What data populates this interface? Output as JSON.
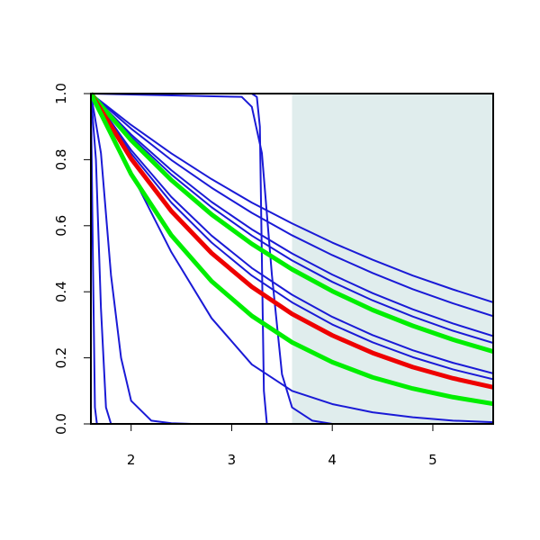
{
  "chart_data": {
    "type": "line",
    "xlim": [
      1.6,
      5.6
    ],
    "ylim": [
      0,
      1
    ],
    "xticks": [
      2,
      3,
      4,
      5
    ],
    "yticks": [
      {
        "value": 0,
        "label": "0.0"
      },
      {
        "value": 0.2,
        "label": "0.2"
      },
      {
        "value": 0.4,
        "label": "0.4"
      },
      {
        "value": 0.6,
        "label": "0.6"
      },
      {
        "value": 0.8,
        "label": "0.8"
      },
      {
        "value": 1,
        "label": "1.0"
      }
    ],
    "shade": {
      "xlim": [
        3.6,
        5.6
      ],
      "color": "#e0eded"
    },
    "series": [
      {
        "color": "#1a1ad6",
        "width": 2,
        "x": [
          1.6,
          1.62,
          1.64,
          1.66,
          5.6
        ],
        "values": [
          1,
          0.5,
          0.05,
          0,
          0
        ]
      },
      {
        "color": "#1a1ad6",
        "width": 2,
        "x": [
          1.6,
          1.65,
          1.7,
          1.75,
          1.8,
          5.6
        ],
        "values": [
          1,
          0.8,
          0.35,
          0.05,
          0,
          0
        ]
      },
      {
        "color": "#1a1ad6",
        "width": 2,
        "x": [
          1.6,
          1.7,
          1.8,
          1.9,
          2.0,
          2.2,
          2.4,
          2.6,
          5.6
        ],
        "values": [
          1,
          0.82,
          0.45,
          0.2,
          0.07,
          0.01,
          0.002,
          0,
          0
        ]
      },
      {
        "color": "#1a1ad6",
        "width": 2,
        "x": [
          1.6,
          2.0,
          2.4,
          2.8,
          3.2,
          3.6,
          4.0,
          4.4,
          4.8,
          5.2,
          5.6
        ],
        "values": [
          1,
          0.76,
          0.52,
          0.32,
          0.18,
          0.1,
          0.06,
          0.035,
          0.02,
          0.01,
          0.005
        ]
      },
      {
        "color": "#1a1ad6",
        "width": 2,
        "x": [
          1.6,
          3.2,
          3.25,
          3.28,
          3.3,
          3.32,
          3.35,
          5.6
        ],
        "values": [
          1,
          1,
          0.99,
          0.9,
          0.5,
          0.1,
          0,
          0
        ]
      },
      {
        "color": "#1a1ad6",
        "width": 2,
        "x": [
          1.6,
          3.1,
          3.2,
          3.3,
          3.4,
          3.5,
          3.6,
          3.8,
          4.0,
          5.6
        ],
        "values": [
          1,
          0.99,
          0.96,
          0.82,
          0.45,
          0.15,
          0.05,
          0.01,
          0,
          0
        ]
      },
      {
        "color": "#1a1ad6",
        "width": 2,
        "x": [
          1.6,
          2.0,
          2.4,
          2.8,
          3.2,
          3.6,
          4.0,
          4.4,
          4.8,
          5.2,
          5.6
        ],
        "values": [
          1,
          0.905,
          0.819,
          0.741,
          0.67,
          0.607,
          0.549,
          0.497,
          0.449,
          0.407,
          0.368
        ]
      },
      {
        "color": "#1a1ad6",
        "width": 2,
        "x": [
          1.6,
          2.0,
          2.4,
          2.8,
          3.2,
          3.6,
          4.0,
          4.4,
          4.8,
          5.2,
          5.6
        ],
        "values": [
          1,
          0.894,
          0.799,
          0.715,
          0.639,
          0.571,
          0.511,
          0.457,
          0.408,
          0.365,
          0.326
        ]
      },
      {
        "color": "#1a1ad6",
        "width": 2,
        "x": [
          1.6,
          2.0,
          2.4,
          2.8,
          3.2,
          3.6,
          4.0,
          4.4,
          4.8,
          5.2,
          5.6
        ],
        "values": [
          1,
          0.876,
          0.768,
          0.672,
          0.589,
          0.516,
          0.452,
          0.396,
          0.347,
          0.304,
          0.266
        ]
      },
      {
        "color": "#1a1ad6",
        "width": 2,
        "x": [
          1.6,
          2.0,
          2.4,
          2.8,
          3.2,
          3.6,
          4.0,
          4.4,
          4.8,
          5.2,
          5.6
        ],
        "values": [
          1,
          0.869,
          0.755,
          0.656,
          0.57,
          0.495,
          0.43,
          0.374,
          0.325,
          0.282,
          0.245
        ]
      },
      {
        "color": "#1a1ad6",
        "width": 2,
        "x": [
          1.6,
          2.0,
          2.4,
          2.8,
          3.2,
          3.6,
          4.0,
          4.4,
          4.8,
          5.2,
          5.6
        ],
        "values": [
          1,
          0.829,
          0.687,
          0.57,
          0.472,
          0.391,
          0.324,
          0.269,
          0.223,
          0.185,
          0.153
        ]
      },
      {
        "color": "#1a1ad6",
        "width": 2,
        "x": [
          1.6,
          2.0,
          2.4,
          2.8,
          3.2,
          3.6,
          4.0,
          4.4,
          4.8,
          5.2,
          5.6
        ],
        "values": [
          1,
          0.819,
          0.67,
          0.549,
          0.449,
          0.368,
          0.301,
          0.247,
          0.202,
          0.165,
          0.135
        ]
      },
      {
        "color": "#00ee00",
        "width": 5,
        "x": [
          1.6,
          2.0,
          2.4,
          2.8,
          3.2,
          3.6,
          4.0,
          4.4,
          4.8,
          5.2,
          5.6
        ],
        "values": [
          1,
          0.859,
          0.738,
          0.634,
          0.545,
          0.468,
          0.402,
          0.345,
          0.297,
          0.255,
          0.219
        ]
      },
      {
        "color": "#ee0000",
        "width": 5,
        "x": [
          1.6,
          2.0,
          2.4,
          2.8,
          3.2,
          3.6,
          4.0,
          4.4,
          4.8,
          5.2,
          5.6
        ],
        "values": [
          1,
          0.803,
          0.644,
          0.517,
          0.415,
          0.333,
          0.268,
          0.215,
          0.172,
          0.138,
          0.111
        ]
      },
      {
        "color": "#00ee00",
        "width": 5,
        "x": [
          1.6,
          2.0,
          2.4,
          2.8,
          3.2,
          3.6,
          4.0,
          4.4,
          4.8,
          5.2,
          5.6
        ],
        "values": [
          1,
          0.756,
          0.571,
          0.432,
          0.327,
          0.247,
          0.187,
          0.141,
          0.107,
          0.081,
          0.061
        ]
      }
    ]
  }
}
